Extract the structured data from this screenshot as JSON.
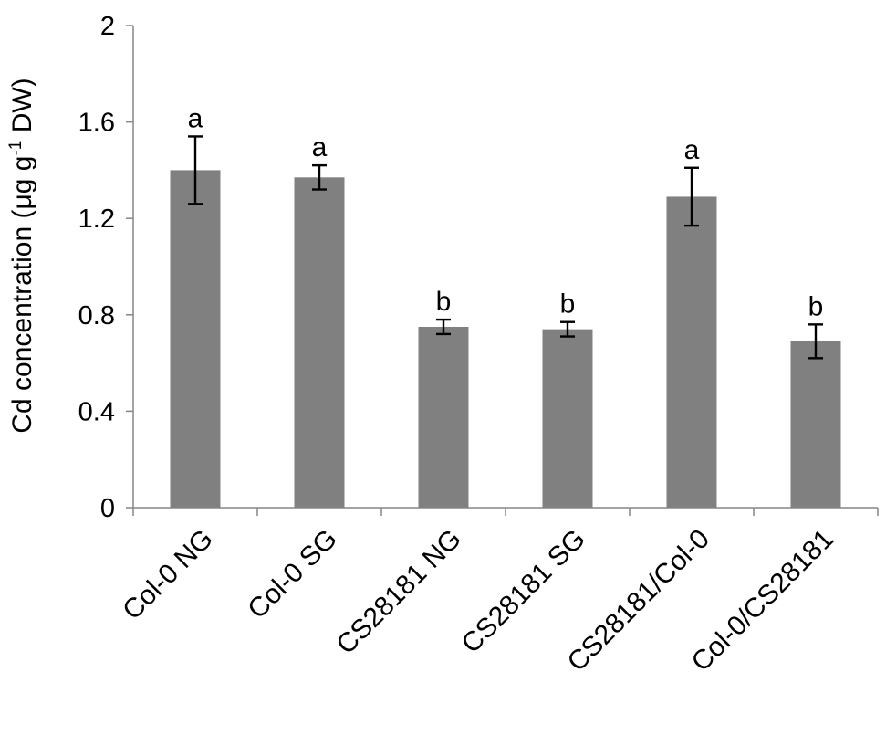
{
  "chart_data": {
    "type": "bar",
    "title": "",
    "xlabel": "",
    "ylabel": {
      "prefix": "Cd concentration (μg g",
      "superscript": "-1",
      "suffix": " DW)"
    },
    "ylim": [
      0,
      2
    ],
    "yticks": [
      "0",
      "0.4",
      "0.8",
      "1.2",
      "1.6",
      "2"
    ],
    "ytick_values": [
      0,
      0.4,
      0.8,
      1.2,
      1.6,
      2
    ],
    "categories": [
      "Col-0 NG",
      "Col-0 SG",
      "CS28181 NG",
      "CS28181 SG",
      "CS28181/Col-0",
      "Col-0/CS28181"
    ],
    "values": [
      1.4,
      1.37,
      0.75,
      0.74,
      1.29,
      0.69
    ],
    "errors": [
      0.14,
      0.05,
      0.03,
      0.03,
      0.12,
      0.07
    ],
    "significance": [
      "a",
      "a",
      "b",
      "b",
      "a",
      "b"
    ],
    "grid": false,
    "legend": "none",
    "colors": {
      "bar": "#808080",
      "axis": "#868686",
      "error": "#000000"
    }
  }
}
